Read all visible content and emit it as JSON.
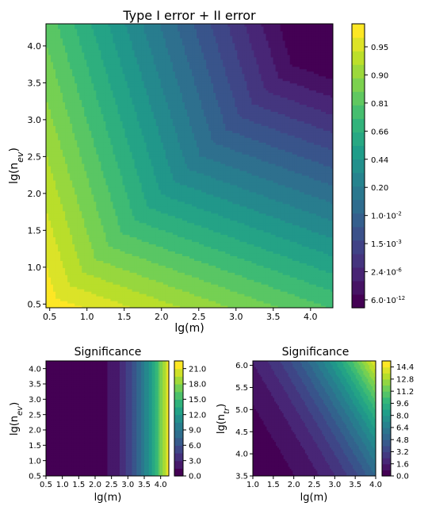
{
  "colormap": [
    "#440154",
    "#482878",
    "#3e4989",
    "#31688e",
    "#26828e",
    "#1f9e89",
    "#35b779",
    "#6ece58",
    "#b5de2b",
    "#fde725"
  ],
  "chart_data": [
    {
      "type": "heatmap",
      "name": "main",
      "title": "Type I error + II error",
      "xlabel": "lg(m)",
      "ylabel_base": "lg(n",
      "ylabel_sub": "ev",
      "xlim": [
        0.45,
        4.3
      ],
      "ylim": [
        0.45,
        4.3
      ],
      "xticks": [
        "0.5",
        "1.0",
        "1.5",
        "2.0",
        "2.5",
        "3.0",
        "3.5",
        "4.0"
      ],
      "yticks": [
        "0.5",
        "1.0",
        "1.5",
        "2.0",
        "2.5",
        "3.0",
        "3.5",
        "4.0"
      ],
      "colorbar_ticks": [
        {
          "m": "6.0",
          "e": "-12"
        },
        {
          "m": "2.4",
          "e": "-6"
        },
        {
          "m": "1.5",
          "e": "-3"
        },
        {
          "m": "1.0",
          "e": "-2"
        },
        {
          "m": "0.20",
          "e": ""
        },
        {
          "m": "0.44",
          "e": ""
        },
        {
          "m": "0.66",
          "e": ""
        },
        {
          "m": "0.81",
          "e": ""
        },
        {
          "m": "0.90",
          "e": ""
        },
        {
          "m": "0.95",
          "e": ""
        }
      ],
      "pattern": "decreasing toward large lg(m) and large lg(n_ev)",
      "grid": false
    },
    {
      "type": "heatmap",
      "name": "left",
      "title": "Significance",
      "xlabel": "lg(m)",
      "ylabel_base": "lg(n",
      "ylabel_sub": "ev",
      "xlim": [
        0.5,
        4.25
      ],
      "ylim": [
        0.5,
        4.25
      ],
      "xticks": [
        "0.5",
        "1.0",
        "1.5",
        "2.0",
        "2.5",
        "3.0",
        "3.5",
        "4.0"
      ],
      "yticks": [
        "0.5",
        "1.0",
        "1.5",
        "2.0",
        "2.5",
        "3.0",
        "3.5",
        "4.0"
      ],
      "colorbar_ticks": [
        "0.0",
        "3.0",
        "6.0",
        "9.0",
        "12.0",
        "15.0",
        "18.0",
        "21.0"
      ],
      "vmax": 22.5,
      "pattern": "near zero below lg(m)=2, increasing steeply with lg(m) to ~22 at lg(m)=4.2",
      "grid": false
    },
    {
      "type": "heatmap",
      "name": "right",
      "title": "Significance",
      "xlabel": "lg(m)",
      "ylabel_base": "lg(n",
      "ylabel_sub": "tr",
      "xlim": [
        1.0,
        4.0
      ],
      "ylim": [
        3.5,
        6.1
      ],
      "xticks": [
        "1.0",
        "1.5",
        "2.0",
        "2.5",
        "3.0",
        "3.5",
        "4.0"
      ],
      "yticks": [
        "3.5",
        "4.0",
        "4.5",
        "5.0",
        "5.5",
        "6.0"
      ],
      "colorbar_ticks": [
        "0.0",
        "1.6",
        "3.2",
        "4.8",
        "6.4",
        "8.0",
        "9.6",
        "11.2",
        "12.8",
        "14.4"
      ],
      "vmax": 15.2,
      "pattern": "increasing with lg(m) and lg(n_tr), max ~15 at top-right",
      "grid": false
    }
  ]
}
